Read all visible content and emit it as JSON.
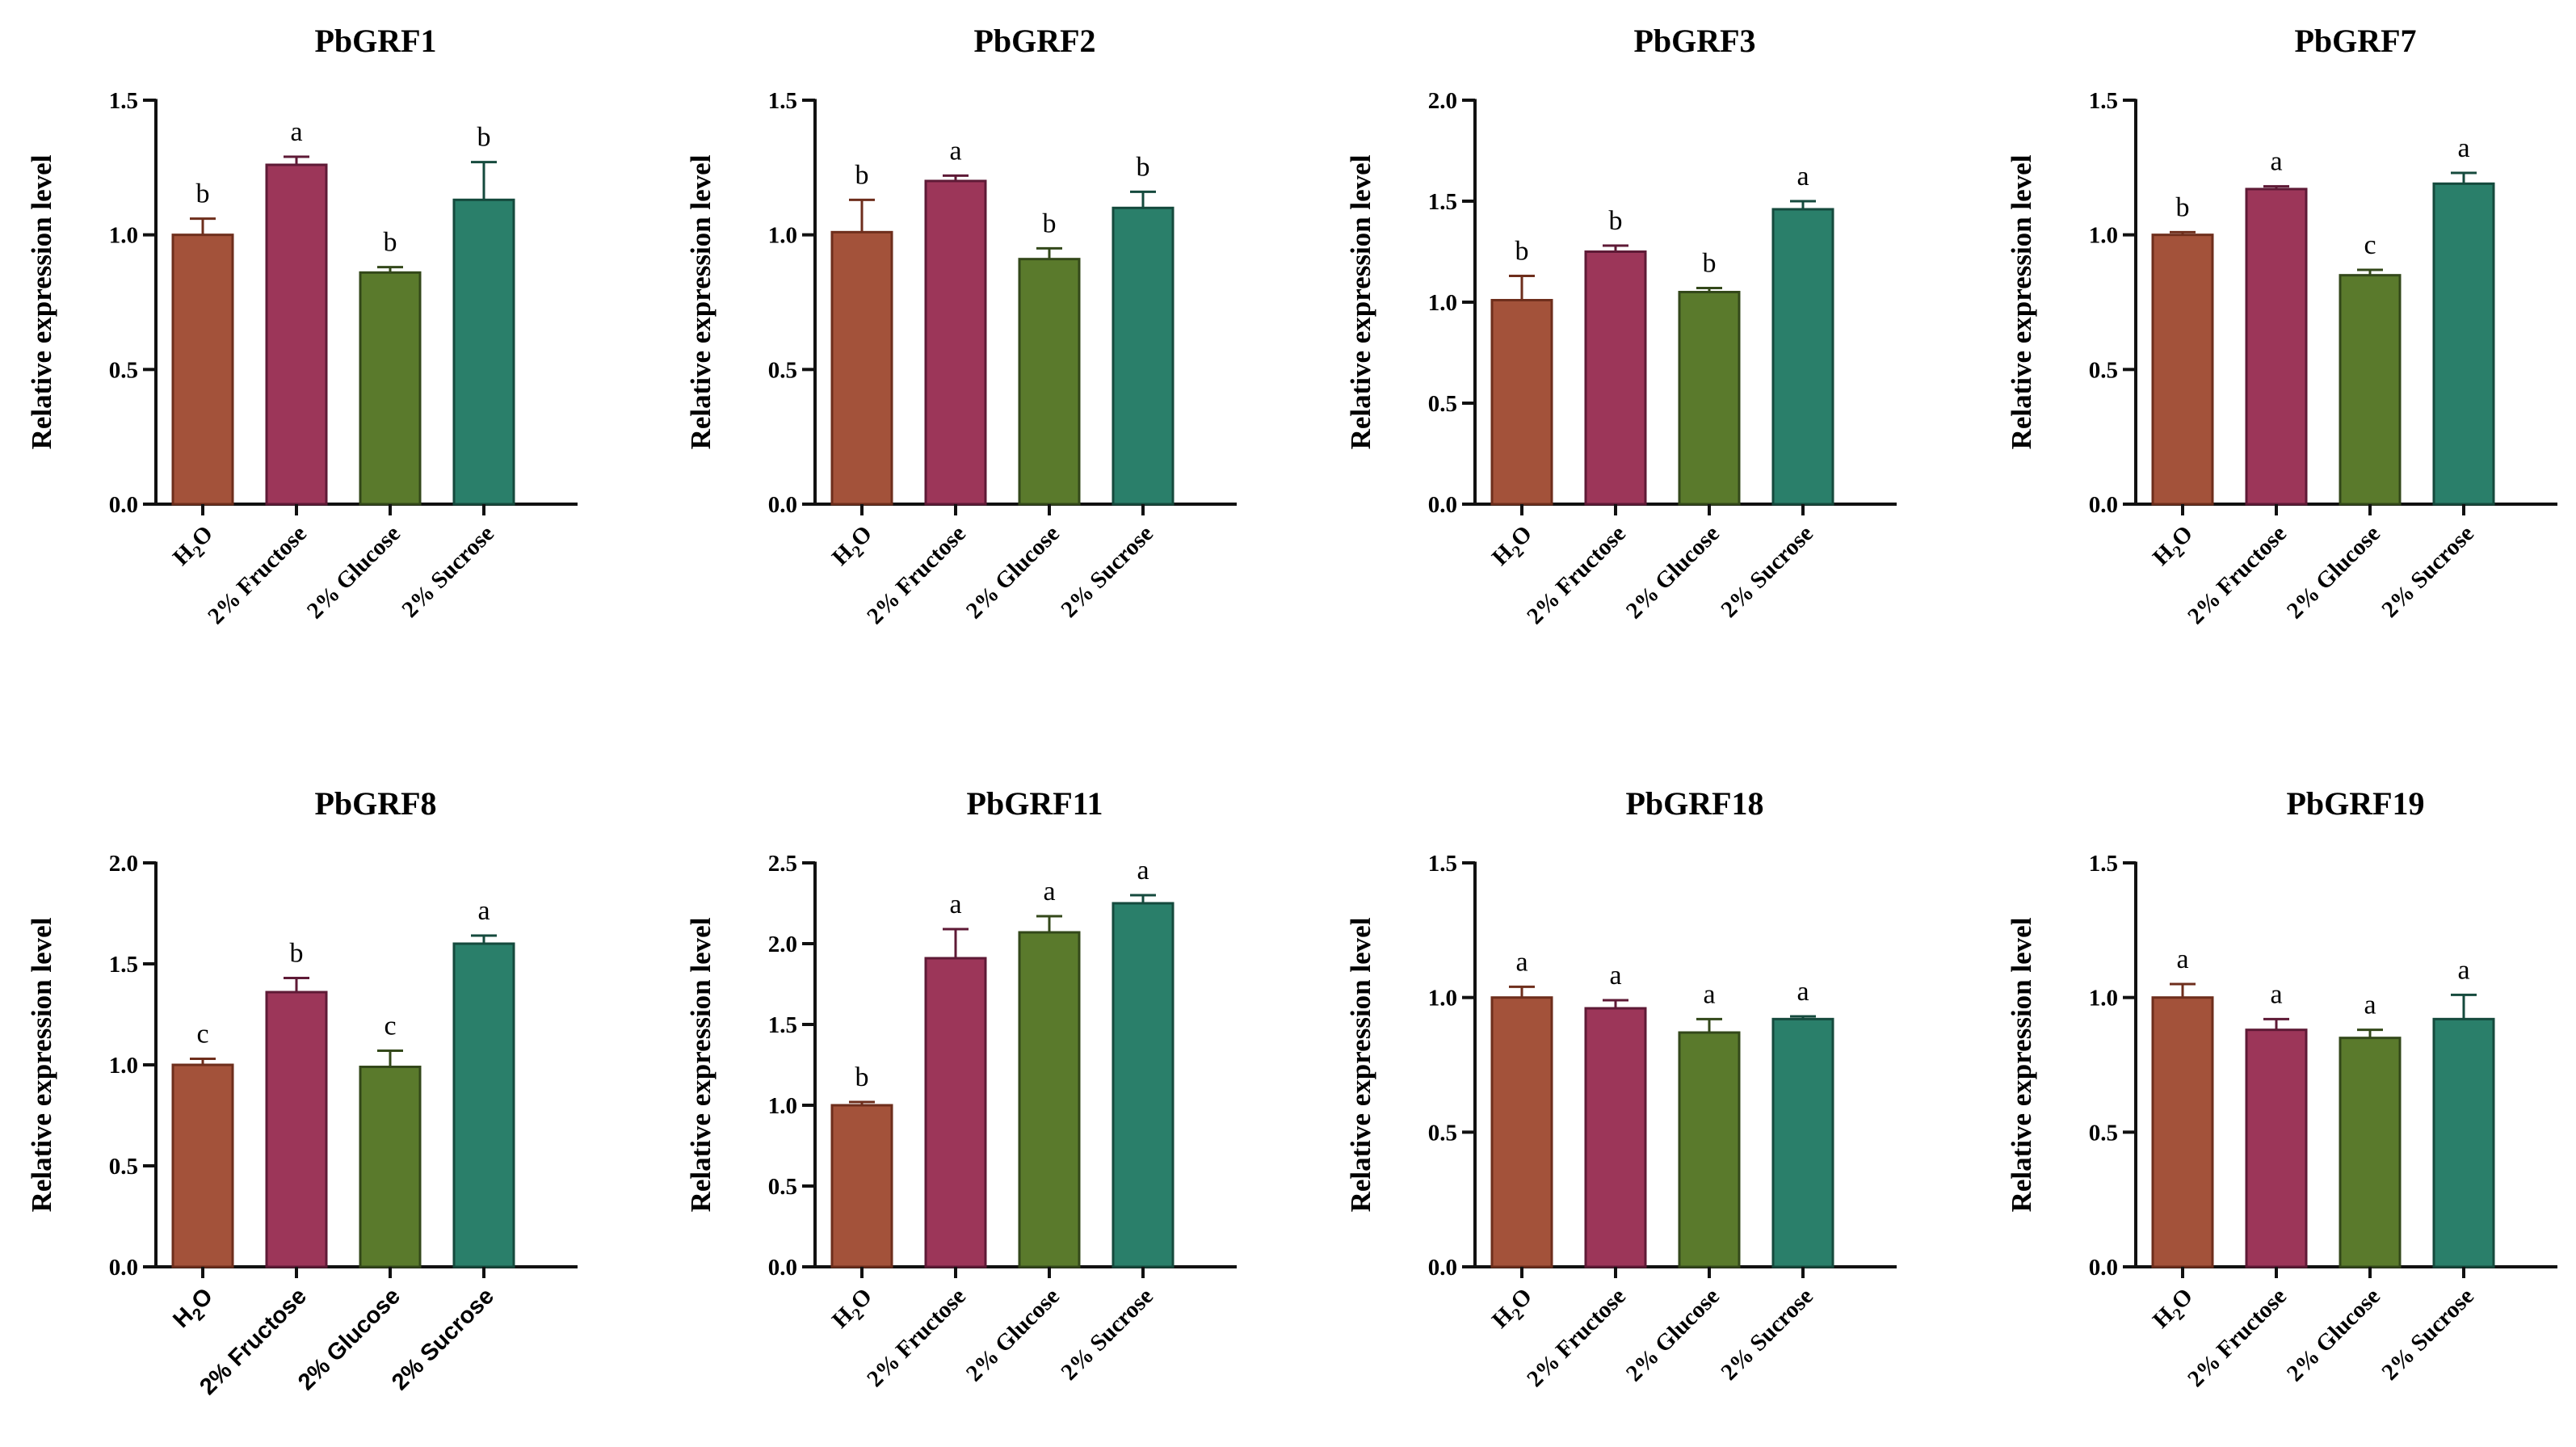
{
  "colors": {
    "axis": "#111111",
    "bar_fills": [
      "#A3523A",
      "#9C3659",
      "#5A7A2C",
      "#2A7F6A"
    ],
    "bar_edges": [
      "#6E2E1C",
      "#5E1A36",
      "#33481A",
      "#154A3D"
    ]
  },
  "chart_data": [
    {
      "type": "bar",
      "title": "PbGRF1",
      "ylabel": "Relative expression level",
      "ylim": [
        0,
        1.5
      ],
      "yticks": [
        "0.0",
        "0.5",
        "1.0",
        "1.5"
      ],
      "ytick_values": [
        0,
        0.5,
        1.0,
        1.5
      ],
      "categories": [
        "H2O",
        "2% Fructose",
        "2% Glucose",
        "2% Sucrose"
      ],
      "values": [
        1.0,
        1.26,
        0.86,
        1.13
      ],
      "errors": [
        0.06,
        0.03,
        0.02,
        0.14
      ],
      "letters": [
        "b",
        "a",
        "b",
        "b"
      ]
    },
    {
      "type": "bar",
      "title": "PbGRF2",
      "ylabel": "Relative expression level",
      "ylim": [
        0,
        1.5
      ],
      "yticks": [
        "0.0",
        "0.5",
        "1.0",
        "1.5"
      ],
      "ytick_values": [
        0,
        0.5,
        1.0,
        1.5
      ],
      "categories": [
        "H2O",
        "2% Fructose",
        "2% Glucose",
        "2% Sucrose"
      ],
      "values": [
        1.01,
        1.2,
        0.91,
        1.1
      ],
      "errors": [
        0.12,
        0.02,
        0.04,
        0.06
      ],
      "letters": [
        "b",
        "a",
        "b",
        "b"
      ]
    },
    {
      "type": "bar",
      "title": "PbGRF3",
      "ylabel": "Relative expression level",
      "ylim": [
        0,
        2.0
      ],
      "yticks": [
        "0.0",
        "0.5",
        "1.0",
        "1.5",
        "2.0"
      ],
      "ytick_values": [
        0,
        0.5,
        1.0,
        1.5,
        2.0
      ],
      "categories": [
        "H2O",
        "2% Fructose",
        "2% Glucose",
        "2% Sucrose"
      ],
      "values": [
        1.01,
        1.25,
        1.05,
        1.46
      ],
      "errors": [
        0.12,
        0.03,
        0.02,
        0.04
      ],
      "letters": [
        "b",
        "b",
        "b",
        "a"
      ]
    },
    {
      "type": "bar",
      "title": "PbGRF7",
      "ylabel": "Relative expression level",
      "ylim": [
        0,
        1.5
      ],
      "yticks": [
        "0.0",
        "0.5",
        "1.0",
        "1.5"
      ],
      "ytick_values": [
        0,
        0.5,
        1.0,
        1.5
      ],
      "categories": [
        "H2O",
        "2% Fructose",
        "2% Glucose",
        "2% Sucrose"
      ],
      "values": [
        1.0,
        1.17,
        0.85,
        1.19
      ],
      "errors": [
        0.01,
        0.01,
        0.02,
        0.04
      ],
      "letters": [
        "b",
        "a",
        "c",
        "a"
      ]
    },
    {
      "type": "bar",
      "title": "PbGRF8",
      "ylabel": "Relative expression level",
      "ylim": [
        0,
        2.0
      ],
      "yticks": [
        "0.0",
        "0.5",
        "1.0",
        "1.5",
        "2.0"
      ],
      "ytick_values": [
        0,
        0.5,
        1.0,
        1.5,
        2.0
      ],
      "categories": [
        "H2O",
        "2% Fructose",
        "2% Glucose",
        "2% Sucrose"
      ],
      "values": [
        1.0,
        1.36,
        0.99,
        1.6
      ],
      "errors": [
        0.03,
        0.07,
        0.08,
        0.04
      ],
      "letters": [
        "c",
        "b",
        "c",
        "a"
      ],
      "sans_category_labels": true
    },
    {
      "type": "bar",
      "title": "PbGRF11",
      "ylabel": "Relative expression level",
      "ylim": [
        0,
        2.5
      ],
      "yticks": [
        "0.0",
        "0.5",
        "1.0",
        "1.5",
        "2.0",
        "2.5"
      ],
      "ytick_values": [
        0,
        0.5,
        1.0,
        1.5,
        2.0,
        2.5
      ],
      "categories": [
        "H2O",
        "2% Fructose",
        "2% Glucose",
        "2% Sucrose"
      ],
      "values": [
        1.0,
        1.91,
        2.07,
        2.25
      ],
      "errors": [
        0.02,
        0.18,
        0.1,
        0.05
      ],
      "letters": [
        "b",
        "a",
        "a",
        "a"
      ]
    },
    {
      "type": "bar",
      "title": "PbGRF18",
      "ylabel": "Relative expression level",
      "ylim": [
        0,
        1.5
      ],
      "yticks": [
        "0.0",
        "0.5",
        "1.0",
        "1.5"
      ],
      "ytick_values": [
        0,
        0.5,
        1.0,
        1.5
      ],
      "categories": [
        "H2O",
        "2% Fructose",
        "2% Glucose",
        "2% Sucrose"
      ],
      "values": [
        1.0,
        0.96,
        0.87,
        0.92
      ],
      "errors": [
        0.04,
        0.03,
        0.05,
        0.01
      ],
      "letters": [
        "a",
        "a",
        "a",
        "a"
      ]
    },
    {
      "type": "bar",
      "title": "PbGRF19",
      "ylabel": "Relative expression level",
      "ylim": [
        0,
        1.5
      ],
      "yticks": [
        "0.0",
        "0.5",
        "1.0",
        "1.5"
      ],
      "ytick_values": [
        0,
        0.5,
        1.0,
        1.5
      ],
      "categories": [
        "H2O",
        "2% Fructose",
        "2% Glucose",
        "2% Sucrose"
      ],
      "values": [
        1.0,
        0.88,
        0.85,
        0.92
      ],
      "errors": [
        0.05,
        0.04,
        0.03,
        0.09
      ],
      "letters": [
        "a",
        "a",
        "a",
        "a"
      ]
    }
  ]
}
